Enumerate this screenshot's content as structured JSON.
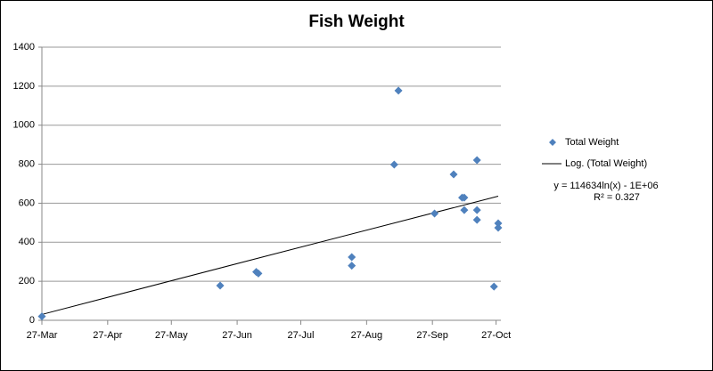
{
  "chart_data": {
    "type": "scatter",
    "title": "Fish Weight",
    "xlim": [
      86,
      301
    ],
    "xticks": [
      {
        "value": 86,
        "label": "27-Mar"
      },
      {
        "value": 117,
        "label": "27-Apr"
      },
      {
        "value": 147,
        "label": "27-May"
      },
      {
        "value": 178,
        "label": "27-Jun"
      },
      {
        "value": 208,
        "label": "27-Jul"
      },
      {
        "value": 239,
        "label": "27-Aug"
      },
      {
        "value": 270,
        "label": "27-Sep"
      },
      {
        "value": 300,
        "label": "27-Oct"
      }
    ],
    "ylim": [
      0,
      1400
    ],
    "yticks": [
      0,
      200,
      400,
      600,
      800,
      1000,
      1200,
      1400
    ],
    "grid": true,
    "legend": "right",
    "series": [
      {
        "name": "Total Weight",
        "color": "#4f81bd",
        "x": [
          86,
          170,
          187,
          188,
          232,
          232,
          252,
          254,
          271,
          280,
          284,
          285,
          285,
          291,
          291,
          291,
          299,
          301,
          301
        ],
        "values": [
          20,
          178,
          248,
          240,
          324,
          280,
          798,
          1177,
          547,
          748,
          629,
          629,
          565,
          821,
          565,
          515,
          173,
          497,
          474
        ]
      }
    ],
    "trendline": {
      "name": "Log. (Total Weight)",
      "color": "#000000",
      "x": [
        86,
        193,
        301
      ],
      "values": [
        30,
        333,
        636
      ]
    },
    "annotations": [
      "y = 114634ln(x) - 1E+06",
      "R² = 0.327"
    ]
  }
}
